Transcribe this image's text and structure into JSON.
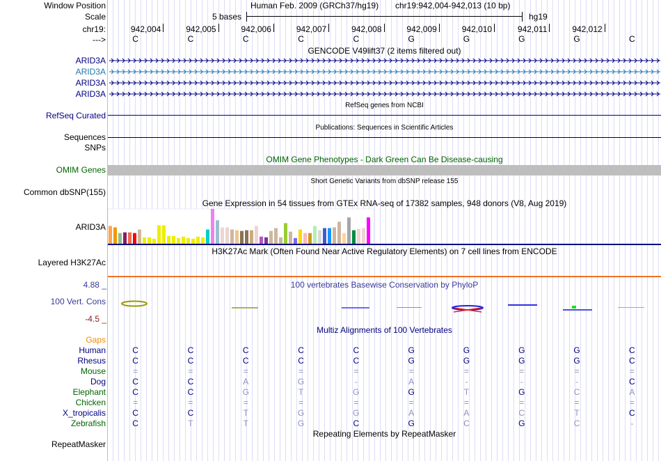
{
  "header": {
    "window_position_label": "Window Position",
    "assembly": "Human Feb. 2009 (GRCh37/hg19)",
    "position": "chr19:942,004-942,013 (10 bp)",
    "scale_label": "Scale",
    "scale_text": "5 bases",
    "scale_db": "hg19",
    "chrom_label": "chr19:",
    "strand_label": "--->"
  },
  "ruler": {
    "positions": [
      "942,004",
      "942,005",
      "942,006",
      "942,007",
      "942,008",
      "942,009",
      "942,010",
      "942,011",
      "942,012"
    ],
    "bases": [
      "C",
      "C",
      "C",
      "C",
      "C",
      "G",
      "G",
      "G",
      "G",
      "C"
    ]
  },
  "gencode": {
    "title": "GENCODE V49lift37 (2 items filtered out)",
    "items": [
      "ARID3A",
      "ARID3A",
      "ARID3A",
      "ARID3A"
    ]
  },
  "refseq": {
    "title": "RefSeq genes from NCBI",
    "label": "RefSeq Curated"
  },
  "publications": {
    "title": "Publications: Sequences in Scientific Articles",
    "label": "Sequences"
  },
  "snps": {
    "label": "SNPs"
  },
  "omim": {
    "title": "OMIM Gene Phenotypes - Dark Green Can Be Disease-causing",
    "label": "OMIM Genes"
  },
  "dbsnp": {
    "title": "Short Genetic Variants from dbSNP release 155",
    "label": "Common dbSNP(155)"
  },
  "gtex": {
    "title": "Gene Expression in 54 tissues from GTEx RNA-seq of 17382 samples, 948 donors (V8, Aug 2019)",
    "label": "ARID3A"
  },
  "chart_data": {
    "type": "bar",
    "title": "Gene Expression in 54 tissues from GTEx RNA-seq",
    "values": [
      25,
      23,
      15,
      16,
      16,
      15,
      20,
      9,
      9,
      7,
      26,
      26,
      11,
      11,
      8,
      10,
      8,
      7,
      10,
      9,
      20,
      49,
      33,
      23,
      23,
      20,
      19,
      18,
      19,
      19,
      25,
      10,
      9,
      18,
      22,
      9,
      29,
      17,
      8,
      20,
      15,
      15,
      25,
      19,
      22,
      22,
      23,
      31,
      15,
      37,
      19,
      21,
      22,
      37
    ],
    "colors": [
      "#FFA54F",
      "#EE9A00",
      "#8FBC8F",
      "#8B1C62",
      "#EE6A50",
      "#FF0000",
      "#CDB79E",
      "#EEEE00",
      "#EEEE00",
      "#EEEE00",
      "#EEEE00",
      "#EEEE00",
      "#EEEE00",
      "#EEEE00",
      "#EEEE00",
      "#EEEE00",
      "#EEEE00",
      "#EEEE00",
      "#EEEE00",
      "#EEEE00",
      "#00CDCD",
      "#EE82EE",
      "#9AC0CD",
      "#EED5D2",
      "#EED5D2",
      "#CDB79E",
      "#EEC591",
      "#8B7355",
      "#8B7355",
      "#CDAA7D",
      "#EED5D2",
      "#B452CD",
      "#7A378B",
      "#CDB79E",
      "#CDB79E",
      "#CDB79E",
      "#9ACD32",
      "#CDB79E",
      "#7B68EE",
      "#FFD700",
      "#FFB6C1",
      "#CD9B1D",
      "#B4EEB4",
      "#D9D9D9",
      "#3A5FCD",
      "#1E90FF",
      "#CDB79E",
      "#CDB79E",
      "#FFD39B",
      "#A6A6A6",
      "#008B45",
      "#EED5D2",
      "#EED5D2",
      "#FF00FF"
    ]
  },
  "h3k27ac": {
    "title": "H3K27Ac Mark (Often Found Near Active Regulatory Elements) on 7 cell lines from ENCODE",
    "label": "Layered H3K27Ac"
  },
  "phylop": {
    "title": "100 vertebrates Basewise Conservation by PhyloP",
    "label": "100 Vert. Cons",
    "max": "4.88 _",
    "min": "-4.5 _"
  },
  "multiz": {
    "title": "Multiz Alignments of 100 Vertebrates",
    "gaps_label": "Gaps",
    "species": [
      {
        "name": "Human",
        "bases": [
          "C",
          "C",
          "C",
          "C",
          "C",
          "G",
          "G",
          "G",
          "G",
          "C"
        ],
        "match": [
          1,
          1,
          1,
          1,
          1,
          1,
          1,
          1,
          1,
          1
        ]
      },
      {
        "name": "Rhesus",
        "bases": [
          "C",
          "C",
          "C",
          "C",
          "C",
          "G",
          "G",
          "G",
          "G",
          "C"
        ],
        "match": [
          1,
          1,
          1,
          1,
          1,
          1,
          1,
          1,
          1,
          1
        ]
      },
      {
        "name": "Mouse",
        "bases": [
          "=",
          "=",
          "=",
          "=",
          "=",
          "=",
          "=",
          "=",
          "=",
          "="
        ],
        "match": [
          0,
          0,
          0,
          0,
          0,
          0,
          0,
          0,
          0,
          0
        ]
      },
      {
        "name": "Dog",
        "bases": [
          "C",
          "C",
          "A",
          "G",
          "-",
          "A",
          "-",
          "-",
          "-",
          "C"
        ],
        "match": [
          1,
          1,
          0,
          0,
          0,
          0,
          0,
          0,
          0,
          1
        ]
      },
      {
        "name": "Elephant",
        "bases": [
          "C",
          "C",
          "G",
          "T",
          "G",
          "G",
          "T",
          "G",
          "C",
          "A"
        ],
        "match": [
          1,
          1,
          0,
          0,
          0,
          1,
          0,
          1,
          0,
          0
        ]
      },
      {
        "name": "Chicken",
        "bases": [
          "=",
          "=",
          "=",
          "=",
          "=",
          "=",
          "=",
          "=",
          "=",
          "="
        ],
        "match": [
          0,
          0,
          0,
          0,
          0,
          0,
          0,
          0,
          0,
          0
        ]
      },
      {
        "name": "X_tropicalis",
        "bases": [
          "C",
          "C",
          "T",
          "G",
          "G",
          "A",
          "A",
          "C",
          "T",
          "C"
        ],
        "match": [
          1,
          1,
          0,
          0,
          0,
          0,
          0,
          0,
          0,
          1
        ]
      },
      {
        "name": "Zebrafish",
        "bases": [
          "C",
          "T",
          "T",
          "G",
          "C",
          "G",
          "C",
          "G",
          "C",
          "-"
        ],
        "match": [
          1,
          0,
          0,
          0,
          1,
          1,
          0,
          1,
          0,
          0
        ]
      }
    ]
  },
  "repeatmasker": {
    "title": "Repeating Elements by RepeatMasker",
    "label": "RepeatMasker"
  }
}
